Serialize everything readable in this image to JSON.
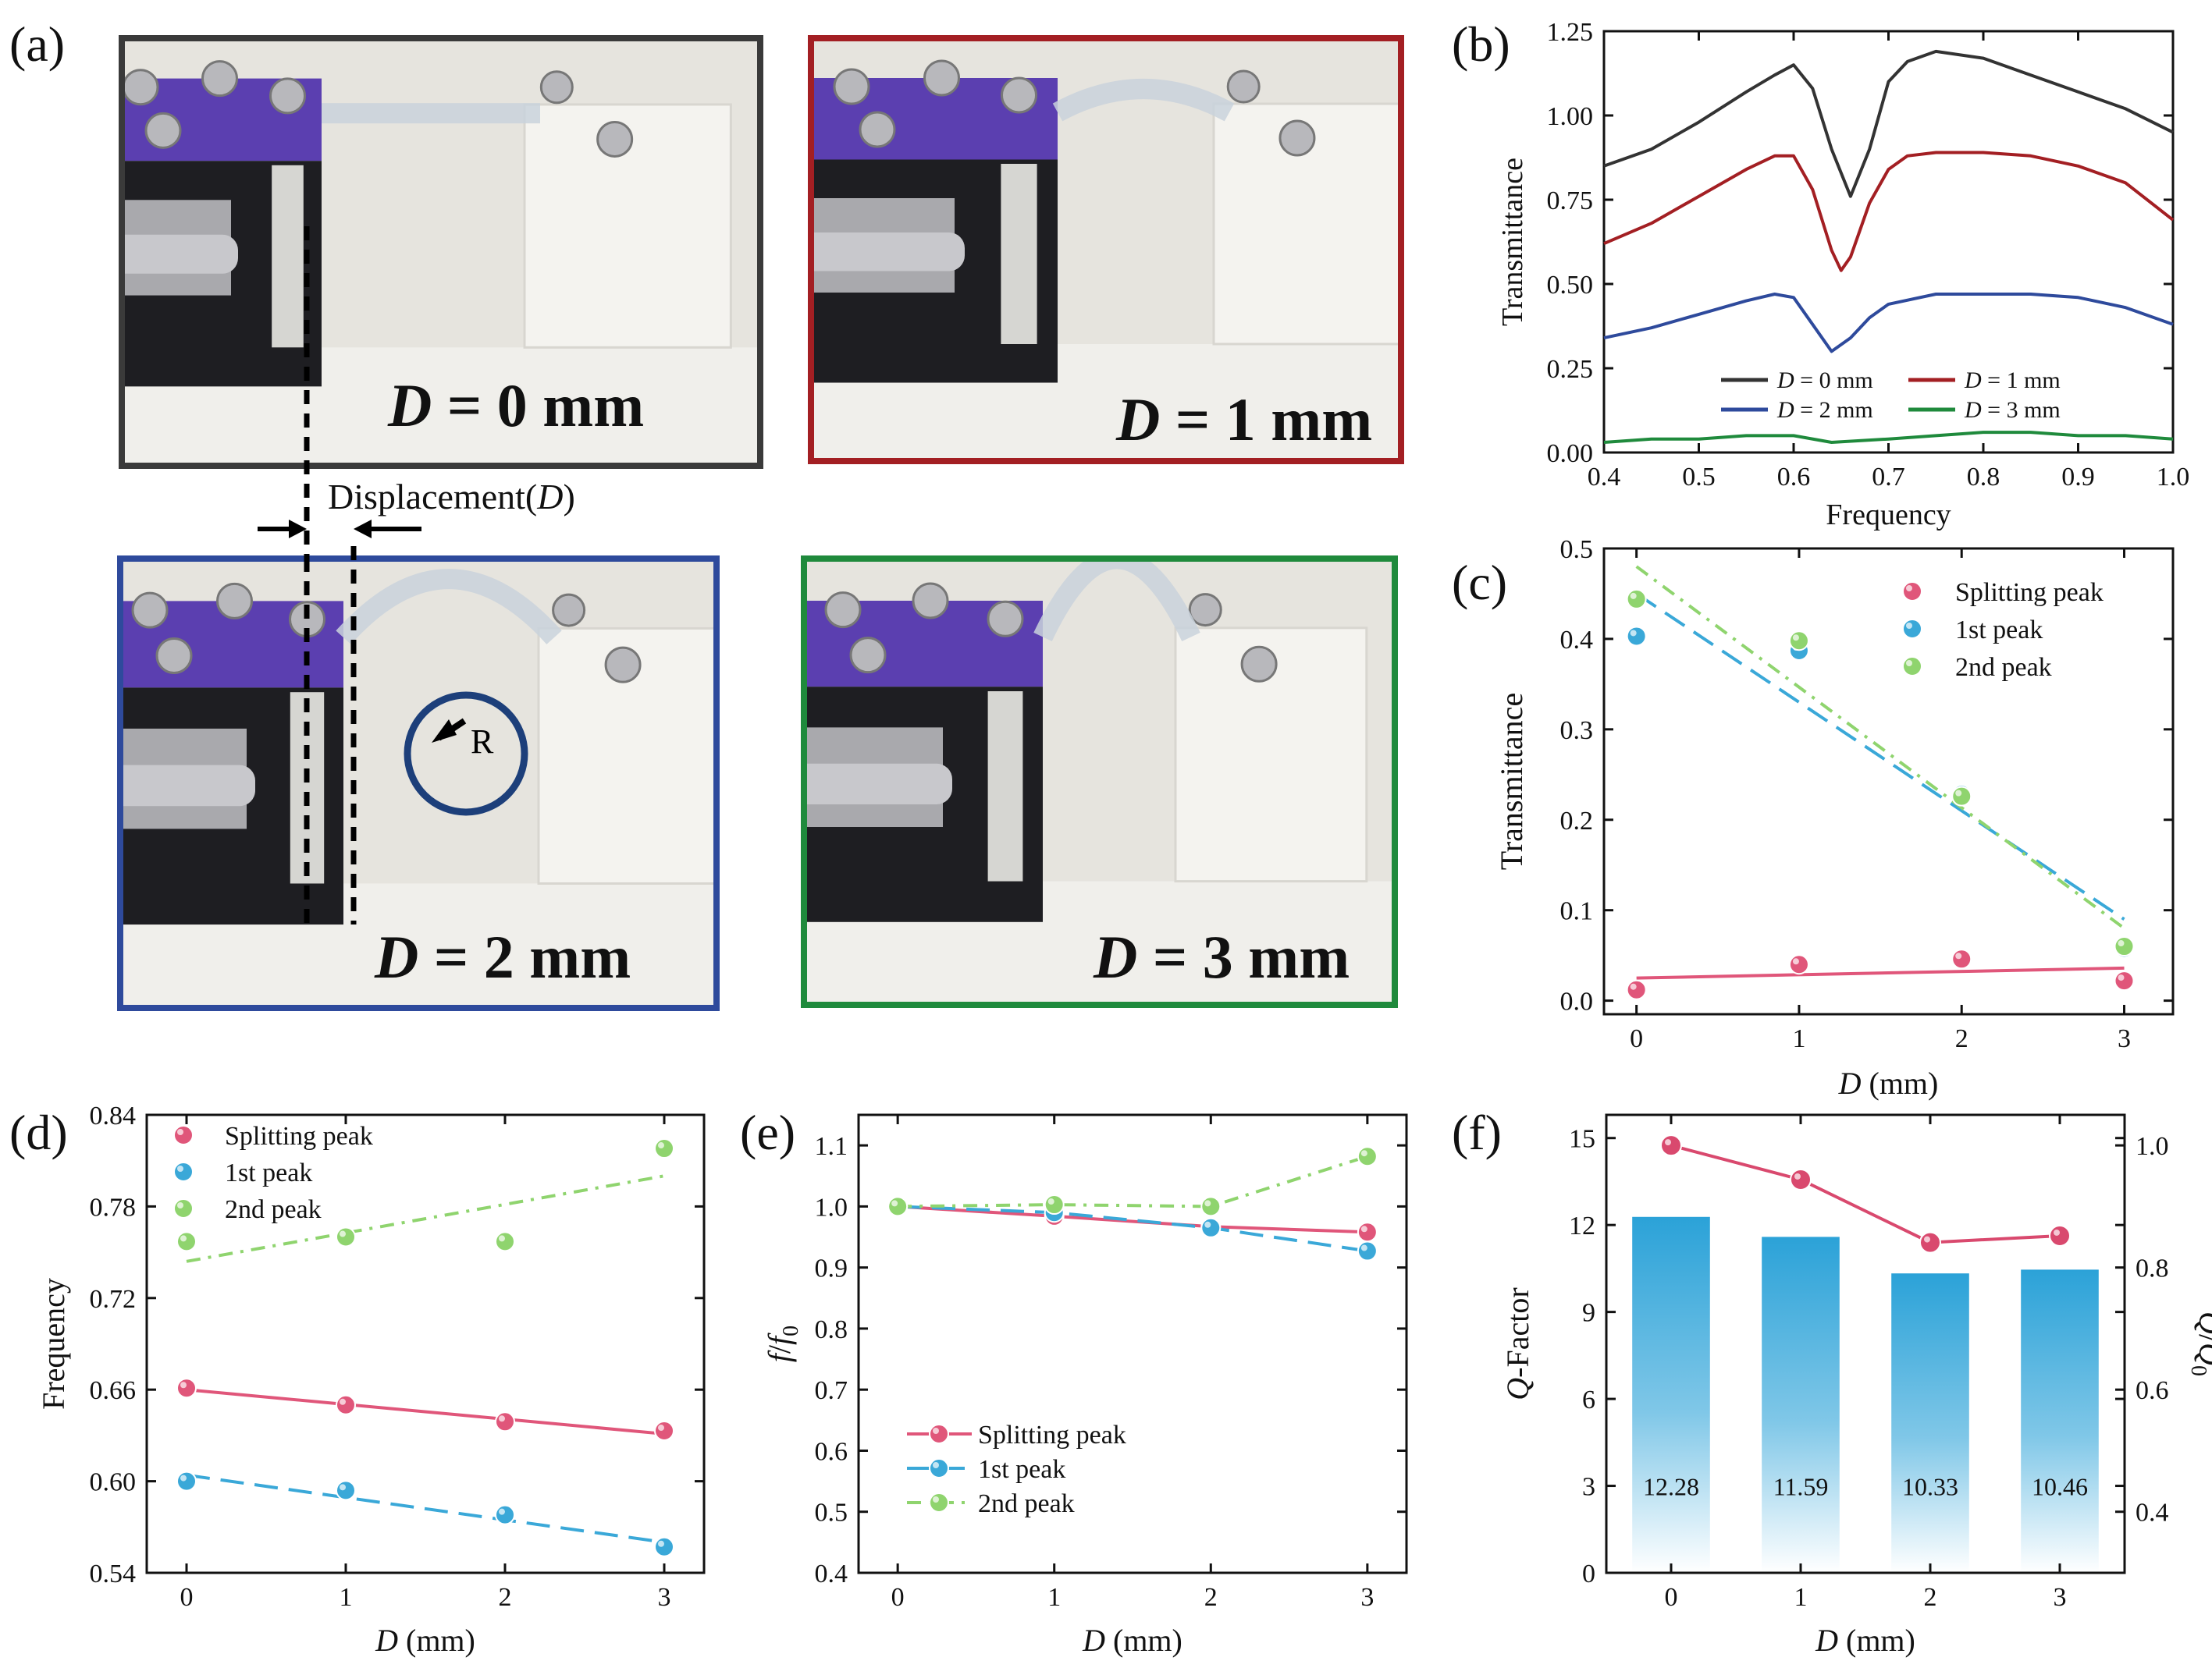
{
  "panels": {
    "a": "(a)",
    "b": "(b)",
    "c": "(c)",
    "d": "(d)",
    "e": "(e)",
    "f": "(f)"
  },
  "photos": [
    {
      "id": "d0",
      "d_var": "D",
      "d_text": " = 0 mm",
      "frame_color": "#3a3a3a"
    },
    {
      "id": "d1",
      "d_var": "D",
      "d_text": " = 1 mm",
      "frame_color": "#a31f23"
    },
    {
      "id": "d2",
      "d_var": "D",
      "d_text": " = 2 mm",
      "frame_color": "#2e4a9c"
    },
    {
      "id": "d3",
      "d_var": "D",
      "d_text": " = 3 mm",
      "frame_color": "#1f8a3c"
    }
  ],
  "annotations": {
    "displacement_prefix": "Displacement(",
    "displacement_var": "D",
    "displacement_suffix": ")",
    "radius": "R"
  },
  "chart_data": [
    {
      "id": "b",
      "type": "line",
      "xlabel": "Frequency",
      "ylabel": "Transmittance",
      "xlim": [
        0.4,
        1.0
      ],
      "ylim": [
        0.0,
        1.25
      ],
      "xticks": [
        "0.4",
        "0.5",
        "0.6",
        "0.7",
        "0.8",
        "0.9",
        "1.0"
      ],
      "yticks": [
        "0.00",
        "0.25",
        "0.50",
        "0.75",
        "1.00",
        "1.25"
      ],
      "legend": "bottom-center",
      "series": [
        {
          "name": "D = 0 mm",
          "legend_var": "D",
          "legend_text": " = 0 mm",
          "color": "#333333",
          "x": [
            0.4,
            0.45,
            0.5,
            0.55,
            0.58,
            0.6,
            0.62,
            0.64,
            0.66,
            0.68,
            0.7,
            0.72,
            0.75,
            0.8,
            0.85,
            0.9,
            0.95,
            1.0
          ],
          "y": [
            0.85,
            0.9,
            0.98,
            1.07,
            1.12,
            1.15,
            1.08,
            0.9,
            0.76,
            0.9,
            1.1,
            1.16,
            1.19,
            1.17,
            1.12,
            1.07,
            1.02,
            0.95
          ]
        },
        {
          "name": "D = 1 mm",
          "legend_var": "D",
          "legend_text": " = 1 mm",
          "color": "#a31f23",
          "x": [
            0.4,
            0.45,
            0.5,
            0.55,
            0.58,
            0.6,
            0.62,
            0.64,
            0.65,
            0.66,
            0.68,
            0.7,
            0.72,
            0.75,
            0.8,
            0.85,
            0.9,
            0.95,
            1.0
          ],
          "y": [
            0.62,
            0.68,
            0.76,
            0.84,
            0.88,
            0.88,
            0.78,
            0.6,
            0.54,
            0.58,
            0.74,
            0.84,
            0.88,
            0.89,
            0.89,
            0.88,
            0.85,
            0.8,
            0.69
          ]
        },
        {
          "name": "D = 2 mm",
          "legend_var": "D",
          "legend_text": " = 2 mm",
          "color": "#2e4a9c",
          "x": [
            0.4,
            0.45,
            0.5,
            0.55,
            0.58,
            0.6,
            0.62,
            0.64,
            0.66,
            0.68,
            0.7,
            0.75,
            0.8,
            0.85,
            0.9,
            0.95,
            1.0
          ],
          "y": [
            0.34,
            0.37,
            0.41,
            0.45,
            0.47,
            0.46,
            0.38,
            0.3,
            0.34,
            0.4,
            0.44,
            0.47,
            0.47,
            0.47,
            0.46,
            0.43,
            0.38
          ]
        },
        {
          "name": "D = 3 mm",
          "legend_var": "D",
          "legend_text": " = 3 mm",
          "color": "#1f8a3c",
          "x": [
            0.4,
            0.45,
            0.5,
            0.55,
            0.6,
            0.64,
            0.7,
            0.75,
            0.8,
            0.85,
            0.9,
            0.95,
            1.0
          ],
          "y": [
            0.03,
            0.04,
            0.04,
            0.05,
            0.05,
            0.03,
            0.04,
            0.05,
            0.06,
            0.06,
            0.05,
            0.05,
            0.04
          ]
        }
      ]
    },
    {
      "id": "c",
      "type": "scatter",
      "xlabel_var": "D",
      "xlabel_text": " (mm)",
      "ylabel": "Transmittance",
      "xlim": [
        -0.2,
        3.3
      ],
      "ylim": [
        -0.015,
        0.5
      ],
      "xticks": [
        "0",
        "1",
        "2",
        "3"
      ],
      "yticks": [
        "0.0",
        "0.1",
        "0.2",
        "0.3",
        "0.4",
        "0.5"
      ],
      "legend": "top-right",
      "series": [
        {
          "name": "Splitting peak",
          "color": "#e0567a",
          "x": [
            0,
            1,
            2,
            3
          ],
          "y": [
            0.012,
            0.04,
            0.046,
            0.022
          ],
          "fit": [
            0.025,
            0.036
          ],
          "dash": ""
        },
        {
          "name": "1st peak",
          "color": "#3aa8d8",
          "x": [
            0,
            1,
            2,
            3
          ],
          "y": [
            0.403,
            0.387,
            0.228,
            0.058
          ],
          "fit": [
            0.45,
            0.09
          ],
          "dash": "30,14"
        },
        {
          "name": "2nd peak",
          "color": "#8fd46e",
          "x": [
            0,
            1,
            2,
            3
          ],
          "y": [
            0.444,
            0.398,
            0.226,
            0.06
          ],
          "fit": [
            0.48,
            0.08
          ],
          "dash": "18,10,4,10"
        }
      ]
    },
    {
      "id": "d",
      "type": "scatter",
      "xlabel_var": "D",
      "xlabel_text": " (mm)",
      "ylabel": "Frequency",
      "xlim": [
        -0.25,
        3.25
      ],
      "ylim": [
        0.54,
        0.84
      ],
      "xticks": [
        "0",
        "1",
        "2",
        "3"
      ],
      "yticks": [
        "0.54",
        "0.60",
        "0.66",
        "0.72",
        "0.78",
        "0.84"
      ],
      "legend": "top-left",
      "series": [
        {
          "name": "Splitting peak",
          "color": "#e0567a",
          "x": [
            0,
            1,
            2,
            3
          ],
          "y": [
            0.661,
            0.65,
            0.639,
            0.633
          ],
          "fit": [
            0.66,
            0.631
          ],
          "dash": ""
        },
        {
          "name": "1st peak",
          "color": "#3aa8d8",
          "x": [
            0,
            1,
            2,
            3
          ],
          "y": [
            0.6,
            0.594,
            0.578,
            0.557
          ],
          "fit": [
            0.604,
            0.56
          ],
          "dash": "30,14"
        },
        {
          "name": "2nd peak",
          "color": "#8fd46e",
          "x": [
            0,
            1,
            2,
            3
          ],
          "y": [
            0.757,
            0.76,
            0.757,
            0.818
          ],
          "fit": [
            0.744,
            0.8
          ],
          "dash": "18,10,4,10"
        }
      ]
    },
    {
      "id": "e",
      "type": "line",
      "xlabel_var": "D",
      "xlabel_text": " (mm)",
      "ylabel_var": "f",
      "ylabel_sep": "/",
      "ylabel_var2": "f",
      "ylabel_sub": "0",
      "xlim": [
        -0.25,
        3.25
      ],
      "ylim": [
        0.4,
        1.15
      ],
      "xticks": [
        "0",
        "1",
        "2",
        "3"
      ],
      "yticks": [
        "0.4",
        "0.5",
        "0.6",
        "0.7",
        "0.8",
        "0.9",
        "1.0",
        "1.1"
      ],
      "legend": "bottom-left",
      "series": [
        {
          "name": "Splitting peak",
          "color": "#e0567a",
          "x": [
            0,
            1,
            2,
            3
          ],
          "y": [
            1.0,
            0.984,
            0.967,
            0.958
          ],
          "dash": ""
        },
        {
          "name": "1st peak",
          "color": "#3aa8d8",
          "x": [
            0,
            1,
            2,
            3
          ],
          "y": [
            1.0,
            0.99,
            0.965,
            0.927
          ],
          "dash": "30,14"
        },
        {
          "name": "2nd peak",
          "color": "#8fd46e",
          "x": [
            0,
            1,
            2,
            3
          ],
          "y": [
            1.0,
            1.003,
            1.0,
            1.082
          ],
          "dash": "18,10,4,10"
        }
      ]
    },
    {
      "id": "f",
      "type": "bar",
      "xlabel_var": "D",
      "xlabel_text": " (mm)",
      "ylabel_var": "Q",
      "ylabel_text": "-Factor",
      "y2label_var": "Q",
      "y2label_sep": "/",
      "y2label_var2": "Q",
      "y2label_sub": "0",
      "categories": [
        "0",
        "1",
        "2",
        "3"
      ],
      "bar_values": [
        12.28,
        11.59,
        10.33,
        10.46
      ],
      "bar_labels": [
        "12.28",
        "11.59",
        "10.33",
        "10.46"
      ],
      "bar_color": "#2ba2d8",
      "ylim": [
        0,
        15.8
      ],
      "yticks": [
        "0",
        "3",
        "6",
        "9",
        "12",
        "15"
      ],
      "y2lim": [
        0.3,
        1.05
      ],
      "y2ticks": [
        "0.4",
        "0.6",
        "0.8",
        "1.0"
      ],
      "line_color": "#d9496e",
      "ratio_values": [
        1.0,
        0.944,
        0.841,
        0.852
      ]
    }
  ]
}
